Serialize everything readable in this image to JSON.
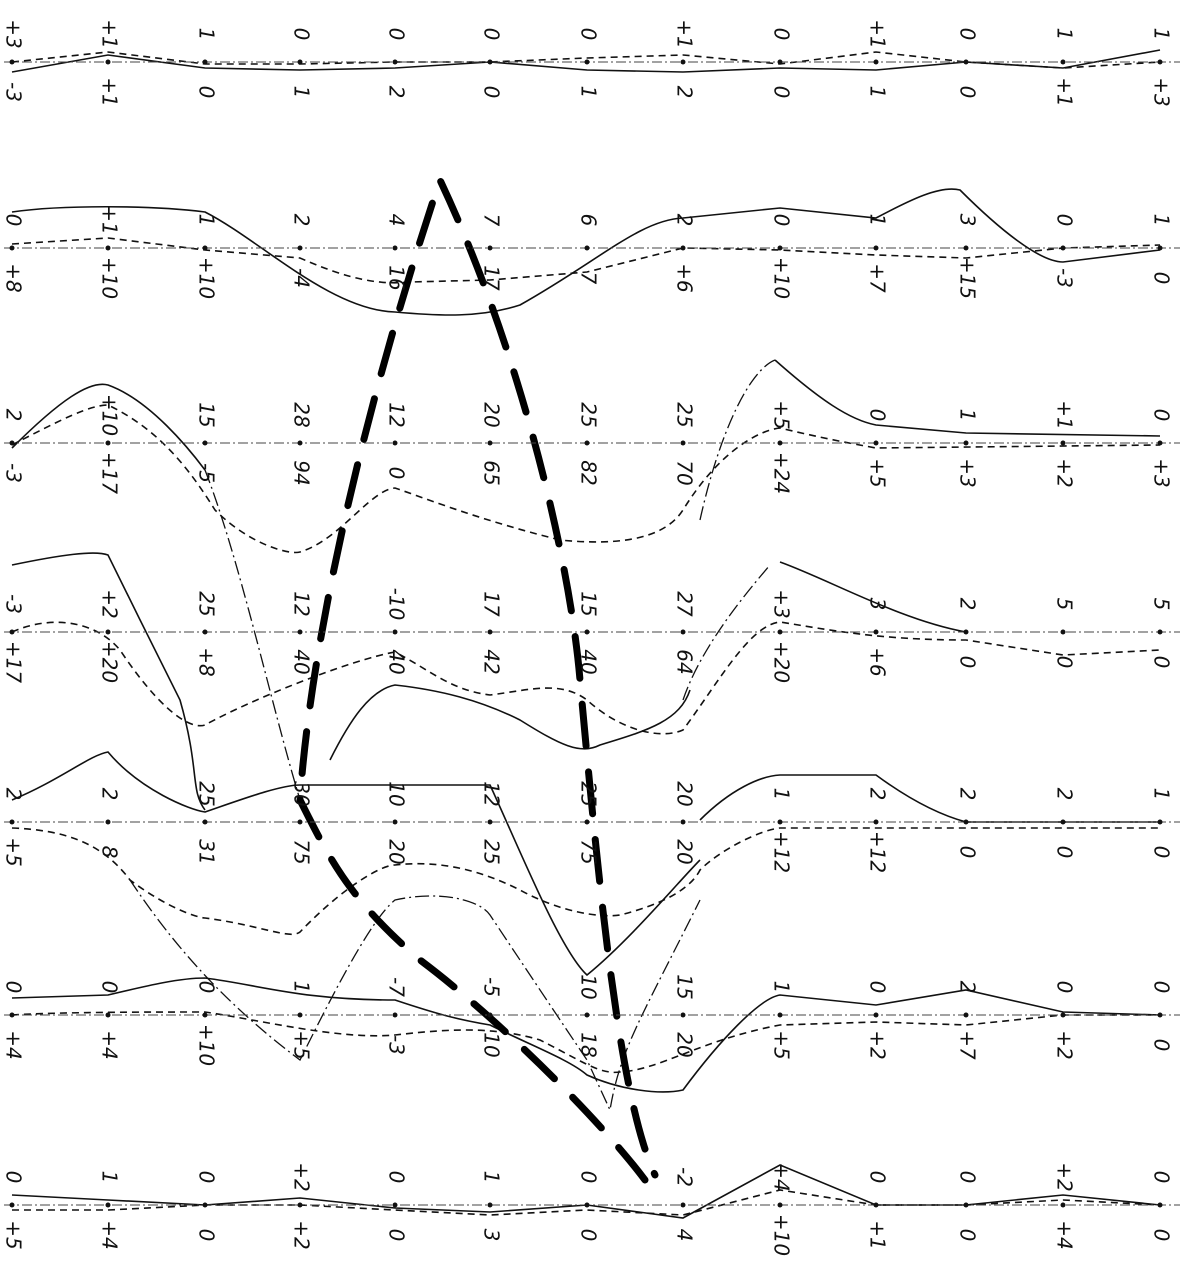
{
  "rows": [
    {
      "top": [
        "+3",
        "+1",
        "1",
        "0",
        "0",
        "0",
        "0",
        "+1",
        "0",
        "+1",
        "0",
        "1",
        "1"
      ],
      "bottom": [
        "-3",
        "+1",
        "0",
        "1",
        "2",
        "0",
        "1",
        "2",
        "0",
        "1",
        "0",
        "+1",
        "+3"
      ]
    },
    {
      "top": [
        "0",
        "+1",
        "1",
        "2",
        "4",
        "7",
        "6",
        "2",
        "0",
        "1",
        "3",
        "0",
        "1"
      ],
      "bottom": [
        "+8",
        "+10",
        "+10",
        "-4",
        "16",
        "17",
        "7",
        "+6",
        "+10",
        "+7",
        "+15",
        "-3",
        "0"
      ]
    },
    {
      "top": [
        "2",
        "+10",
        "15",
        "28",
        "12",
        "20",
        "25",
        "25",
        "+5",
        "0",
        "1",
        "+1",
        "0"
      ],
      "bottom": [
        "-3",
        "+17",
        "-5",
        "94",
        "0",
        "65",
        "82",
        "70",
        "+24",
        "+5",
        "+3",
        "+2",
        "+3"
      ]
    },
    {
      "top": [
        "-3",
        "+2",
        "25",
        "12",
        "-10",
        "17",
        "15",
        "27",
        "+3",
        "3",
        "2",
        "5",
        "5"
      ],
      "bottom": [
        "+17",
        "+20",
        "+8",
        "40",
        "40",
        "42",
        "40",
        "64",
        "+20",
        "+6",
        "0",
        "0",
        "0"
      ]
    },
    {
      "top": [
        "2",
        "2",
        "25",
        "30",
        "10",
        "12",
        "25",
        "20",
        "1",
        "2",
        "2",
        "2",
        "1"
      ],
      "bottom": [
        "+5",
        "8",
        "31",
        "75",
        "20",
        "25",
        "75",
        "20",
        "+12",
        "+12",
        "0",
        "0",
        "0"
      ]
    },
    {
      "top": [
        "0",
        "0",
        "0",
        "1",
        "-7",
        "-5",
        "10",
        "15",
        "1",
        "0",
        "2",
        "0",
        "0"
      ],
      "bottom": [
        "+4",
        "+4",
        "+10",
        "+5",
        "-3",
        "10",
        "18",
        "20",
        "+5",
        "+2",
        "+7",
        "+2",
        "0"
      ]
    },
    {
      "top": [
        "0",
        "1",
        "0",
        "+2",
        "0",
        "1",
        "0",
        "-2",
        "+4",
        "0",
        "0",
        "+2",
        "0"
      ],
      "bottom": [
        "+5",
        "+4",
        "0",
        "+2",
        "0",
        "3",
        "0",
        "4",
        "+10",
        "+1",
        "0",
        "+4",
        "0"
      ]
    }
  ]
}
